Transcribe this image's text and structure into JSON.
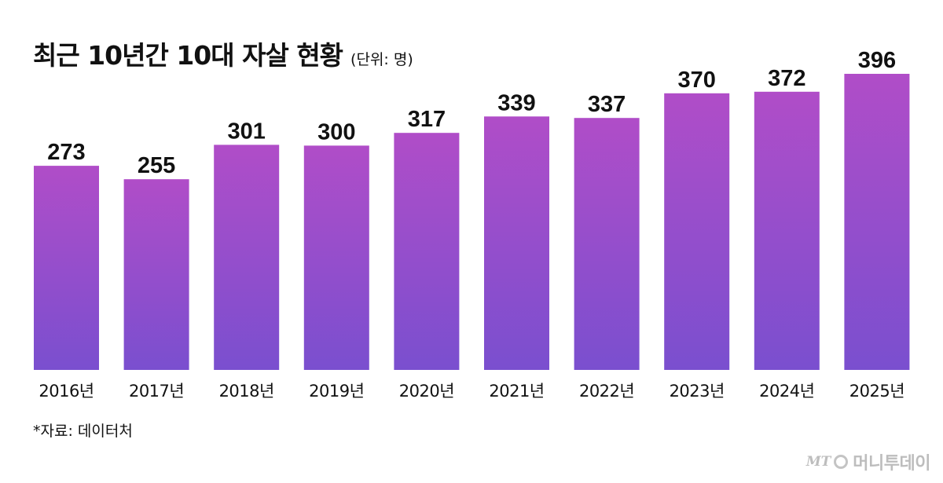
{
  "chart_data": {
    "type": "bar",
    "title": "최근 10년간 10대 자살 현황",
    "unit": "(단위: 명)",
    "categories": [
      "2016년",
      "2017년",
      "2018년",
      "2019년",
      "2020년",
      "2021년",
      "2022년",
      "2023년",
      "2024년",
      "2025년"
    ],
    "values": [
      273,
      255,
      301,
      300,
      317,
      339,
      337,
      370,
      372,
      396
    ],
    "xlabel": "",
    "ylabel": "",
    "ylim": [
      0,
      396
    ],
    "grid": false,
    "legend": "none",
    "colors": {
      "bar_top": "#b04dc8",
      "bar_bottom": "#7a4fcf"
    }
  },
  "source": "*자료: 데이터처",
  "logo": {
    "mark": "MT",
    "name": "머니투데이"
  }
}
